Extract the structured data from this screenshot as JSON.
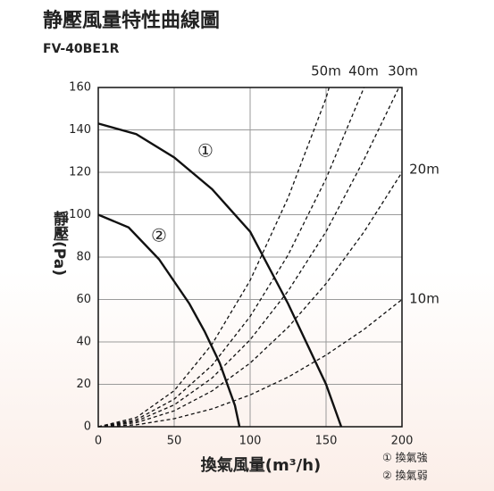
{
  "chart_data": {
    "type": "line",
    "title": "静壓風量特性曲線圖",
    "subtitle": "FV-40BE1R",
    "xlabel": "換氣風量(m³/h)",
    "ylabel": "靜壓(Pa)",
    "xlim": [
      0,
      200
    ],
    "xticks": [
      0,
      50,
      100,
      150,
      200
    ],
    "ylim": [
      0,
      160
    ],
    "yticks": [
      0,
      20,
      40,
      60,
      80,
      100,
      120,
      140,
      160
    ],
    "grid": true,
    "series": [
      {
        "name": "①",
        "color": "#111111",
        "style": "solid",
        "x": [
          0,
          25,
          50,
          75,
          100,
          125,
          150,
          160
        ],
        "values": [
          143,
          138,
          127,
          112,
          92,
          58,
          20,
          0
        ]
      },
      {
        "name": "②",
        "color": "#111111",
        "style": "solid",
        "x": [
          0,
          20,
          40,
          60,
          70,
          80,
          90,
          93
        ],
        "values": [
          100,
          94,
          79,
          58,
          45,
          30,
          10,
          0
        ]
      },
      {
        "name": "50m",
        "color": "#111111",
        "style": "dashed",
        "x": [
          0,
          25,
          50,
          75,
          100,
          125,
          150,
          152
        ],
        "values": [
          0,
          4.3,
          17,
          39,
          69,
          108,
          155,
          160
        ]
      },
      {
        "name": "40m",
        "color": "#111111",
        "style": "dashed",
        "x": [
          0,
          25,
          50,
          75,
          100,
          125,
          150,
          175
        ],
        "values": [
          0,
          3.3,
          13,
          29,
          52,
          81,
          117,
          160
        ]
      },
      {
        "name": "30m",
        "color": "#111111",
        "style": "dashed",
        "x": [
          0,
          25,
          50,
          75,
          100,
          125,
          150,
          175,
          198
        ],
        "values": [
          0,
          2.6,
          10.3,
          23,
          41,
          64,
          92,
          126,
          160
        ]
      },
      {
        "name": "20m",
        "color": "#111111",
        "style": "dashed",
        "x": [
          0,
          25,
          50,
          75,
          100,
          125,
          150,
          175,
          200
        ],
        "values": [
          0,
          1.9,
          7.5,
          16.9,
          30,
          46.9,
          67.5,
          91.9,
          120
        ]
      },
      {
        "name": "10m",
        "color": "#111111",
        "style": "dashed",
        "x": [
          0,
          25,
          50,
          75,
          100,
          125,
          150,
          175,
          200
        ],
        "values": [
          0,
          0.9,
          3.8,
          8.4,
          15,
          23.4,
          33.8,
          45.9,
          60
        ]
      }
    ],
    "legend": [
      "① 換氣強",
      "② 換氣弱"
    ]
  }
}
